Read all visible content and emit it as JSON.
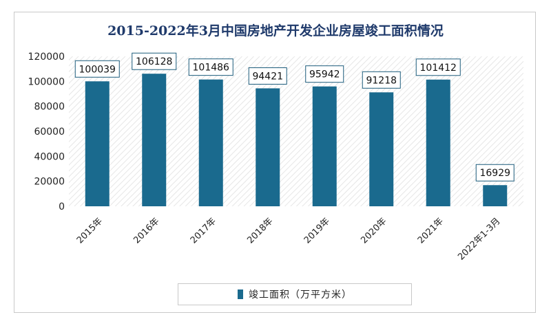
{
  "chart_data": {
    "type": "bar",
    "title": "2015-2022年3月中国房地产开发企业房屋竣工面积情况",
    "categories": [
      "2015年",
      "2016年",
      "2017年",
      "2018年",
      "2019年",
      "2020年",
      "2021年",
      "2022年1-3月"
    ],
    "series": [
      {
        "name": "竣工面积（万平方米）",
        "values": [
          100039,
          106128,
          101486,
          94421,
          95942,
          91218,
          101412,
          16929
        ]
      }
    ],
    "ylim": [
      0,
      120000
    ],
    "yticks": [
      0,
      20000,
      40000,
      60000,
      80000,
      100000,
      120000
    ],
    "xlabel": "",
    "ylabel": "",
    "legend_position": "bottom",
    "bar_color": "#1a6a8e"
  }
}
